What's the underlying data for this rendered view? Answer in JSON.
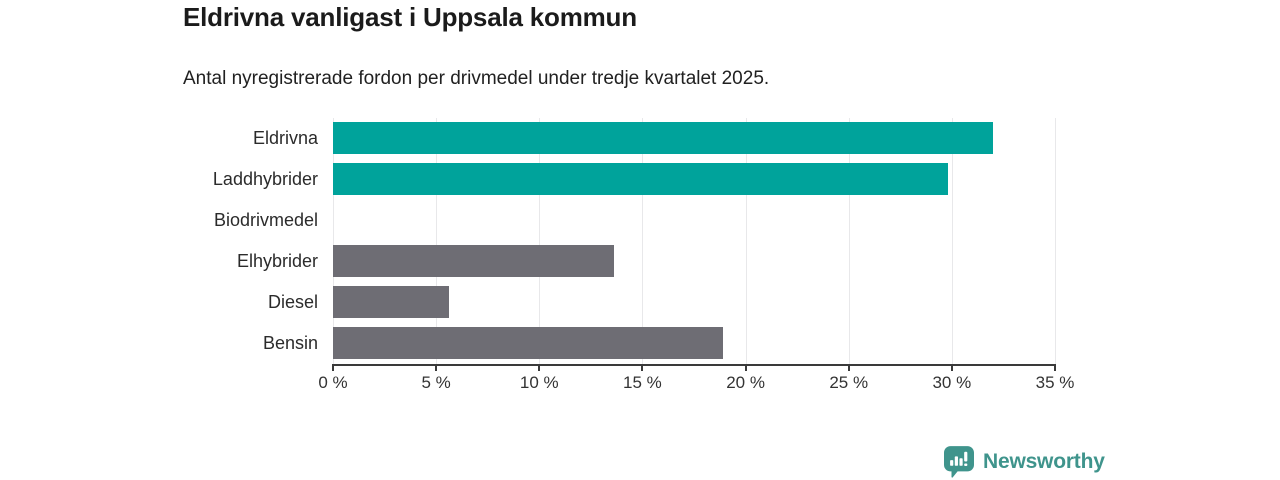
{
  "header": {
    "title": "Eldrivna vanligast i Uppsala kommun",
    "subtitle": "Antal nyregistrerade fordon per drivmedel under tredje kvartalet 2025."
  },
  "chart_data": {
    "type": "bar",
    "orientation": "horizontal",
    "title": "Eldrivna vanligast i Uppsala kommun",
    "subtitle": "Antal nyregistrerade fordon per drivmedel under tredje kvartalet 2025.",
    "categories": [
      "Eldrivna",
      "Laddhybrider",
      "Biodrivmedel",
      "Elhybrider",
      "Diesel",
      "Bensin"
    ],
    "values": [
      32,
      29.8,
      0,
      13.6,
      5.6,
      18.9
    ],
    "value_unit": "%",
    "xlabel": "",
    "ylabel": "",
    "xlim": [
      0,
      35
    ],
    "x_tick_step": 5,
    "x_tick_labels": [
      "0 %",
      "5 %",
      "10 %",
      "15 %",
      "20 %",
      "25 %",
      "30 %",
      "35 %"
    ],
    "bar_colors": [
      "#00a39b",
      "#00a39b",
      "#6e6d74",
      "#6e6d74",
      "#6e6d74",
      "#6e6d74"
    ],
    "accent_color": "#00a39b",
    "default_bar_color": "#6e6d74",
    "gridline_color": "#e8e8ea",
    "axis_color": "#3a3a3a",
    "grid": true,
    "legend": false
  },
  "footer": {
    "brand": "Newsworthy",
    "logo_icon": "bar-chart-speech-bubble-icon",
    "brand_color": "#3f948c"
  }
}
